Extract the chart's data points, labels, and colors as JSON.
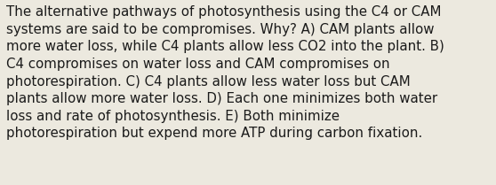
{
  "lines": [
    "The alternative pathways of photosynthesis using the C4 or CAM",
    "systems are said to be compromises. Why? A) CAM plants allow",
    "more water loss, while C4 plants allow less CO2 into the plant. B)",
    "C4 compromises on water loss and CAM compromises on",
    "photorespiration. C) C4 plants allow less water loss but CAM",
    "plants allow more water loss. D) Each one minimizes both water",
    "loss and rate of photosynthesis. E) Both minimize",
    "photorespiration but expend more ATP during carbon fixation."
  ],
  "background_color": "#ece9df",
  "text_color": "#1a1a1a",
  "font_size": 10.8,
  "figwidth": 5.58,
  "figheight": 2.09,
  "dpi": 100
}
